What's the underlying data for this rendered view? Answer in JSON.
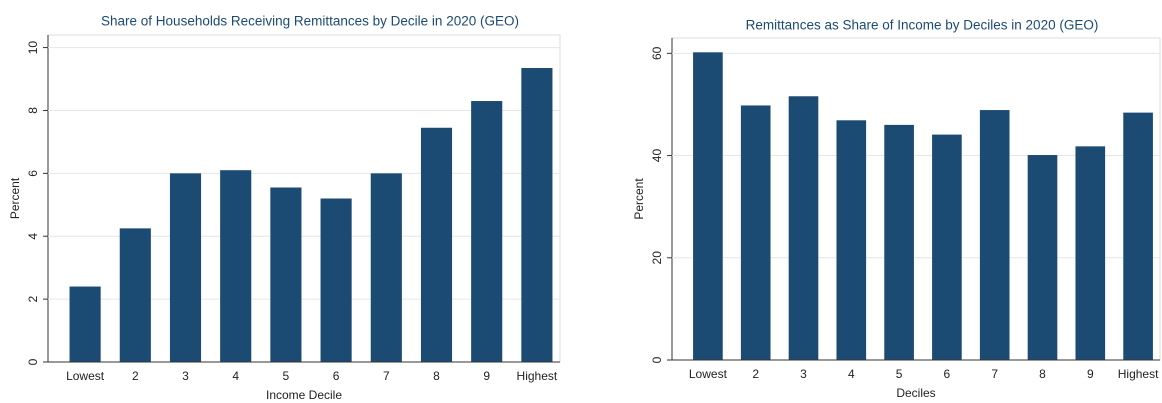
{
  "chart_data": [
    {
      "type": "bar",
      "title": "Share of Households Receiving Remittances by Decile in 2020 (GEO)",
      "y_label": "Percent",
      "x_label": "Income Decile",
      "categories": [
        "Lowest",
        "2",
        "3",
        "4",
        "5",
        "6",
        "7",
        "8",
        "9",
        "Highest"
      ],
      "values": [
        2.4,
        4.25,
        6.0,
        6.1,
        5.55,
        5.2,
        6.0,
        7.45,
        8.3,
        9.35
      ],
      "color": "#1b4a73",
      "ylim": [
        0,
        10.4
      ],
      "yticks": [
        0,
        2,
        4,
        6,
        8,
        10
      ],
      "grid": true
    },
    {
      "type": "bar",
      "title": "Remittances as Share of Income by Deciles in 2020 (GEO)",
      "y_label": "Percent",
      "x_label": "Deciles",
      "categories": [
        "Lowest",
        "2",
        "3",
        "4",
        "5",
        "6",
        "7",
        "8",
        "9",
        "Highest"
      ],
      "values": [
        60.2,
        49.8,
        51.6,
        46.9,
        46.0,
        44.1,
        48.9,
        40.1,
        41.8,
        48.4
      ],
      "color": "#1b4a73",
      "ylim": [
        0,
        63
      ],
      "yticks": [
        0,
        20,
        40,
        60
      ],
      "grid": true
    }
  ]
}
